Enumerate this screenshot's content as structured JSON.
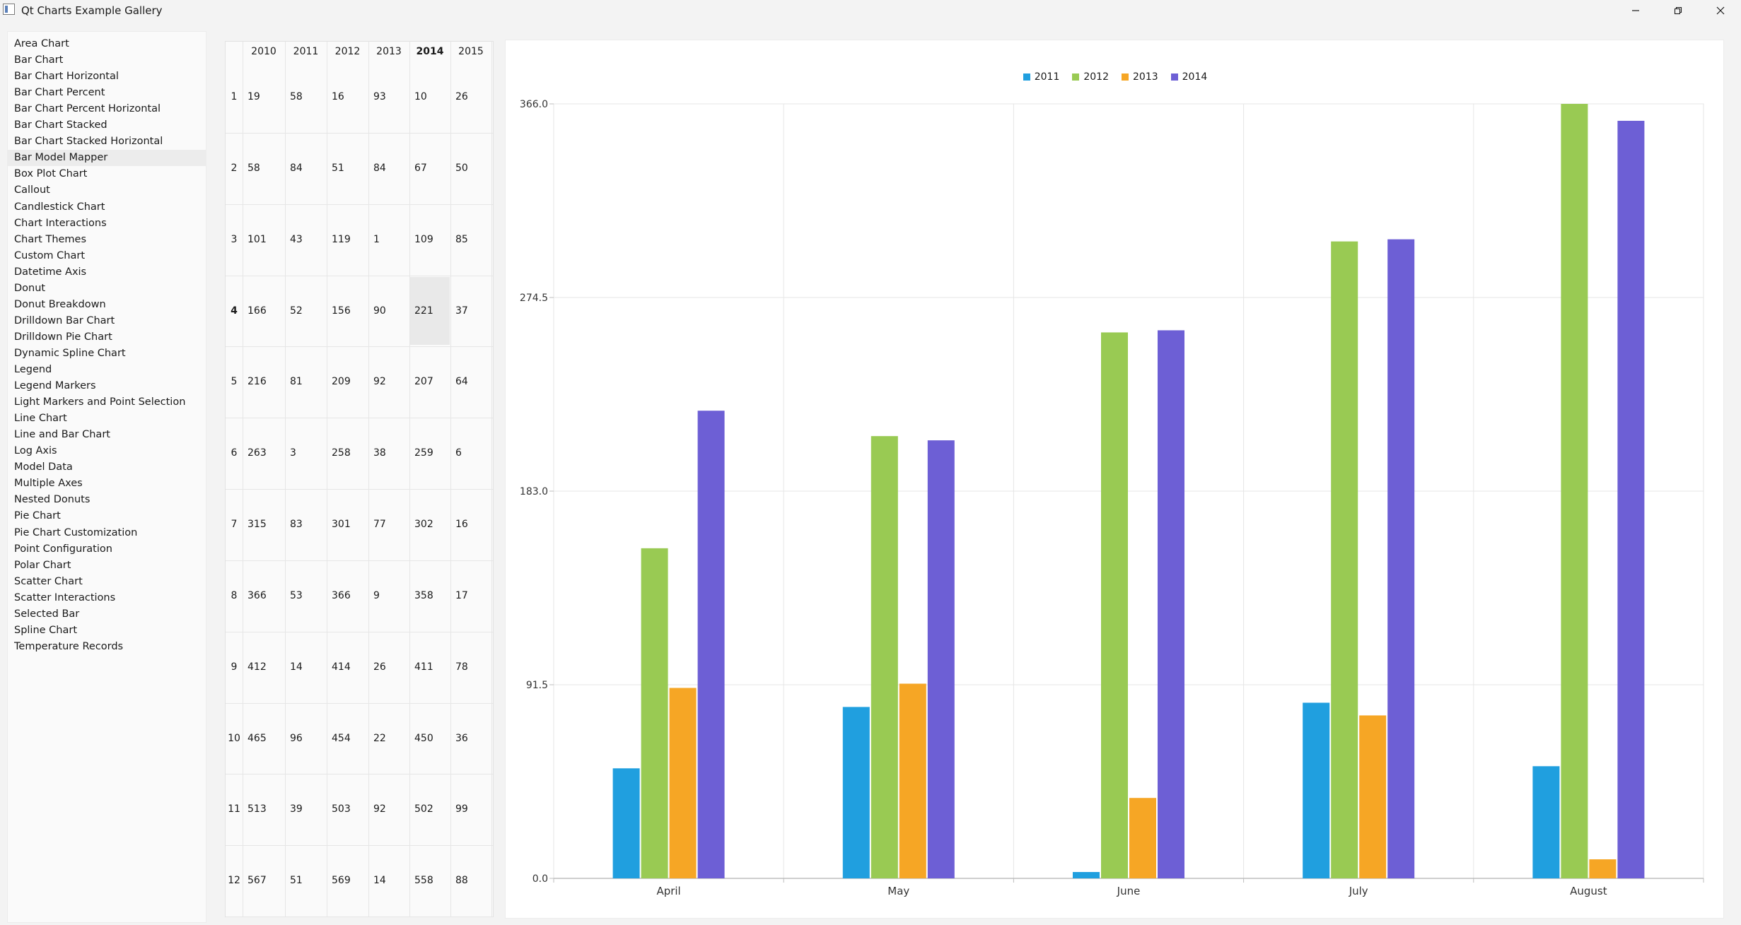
{
  "window": {
    "title": "Qt Charts Example Gallery",
    "icons": {
      "app": "app-icon",
      "minimize": "minimize-icon",
      "maximize": "restore-icon",
      "close": "close-icon"
    }
  },
  "sidebar": {
    "selected_index": 7,
    "items": [
      "Area Chart",
      "Bar Chart",
      "Bar Chart Horizontal",
      "Bar Chart Percent",
      "Bar Chart Percent Horizontal",
      "Bar Chart Stacked",
      "Bar Chart Stacked Horizontal",
      "Bar Model Mapper",
      "Box Plot Chart",
      "Callout",
      "Candlestick Chart",
      "Chart Interactions",
      "Chart Themes",
      "Custom Chart",
      "Datetime Axis",
      "Donut",
      "Donut Breakdown",
      "Drilldown Bar Chart",
      "Drilldown Pie Chart",
      "Dynamic Spline Chart",
      "Legend",
      "Legend Markers",
      "Light Markers and Point Selection",
      "Line Chart",
      "Line and Bar Chart",
      "Log Axis",
      "Model Data",
      "Multiple Axes",
      "Nested Donuts",
      "Pie Chart",
      "Pie Chart Customization",
      "Point Configuration",
      "Polar Chart",
      "Scatter Chart",
      "Scatter Interactions",
      "Selected Bar",
      "Spline Chart",
      "Temperature Records"
    ]
  },
  "table": {
    "columns": [
      "2010",
      "2011",
      "2012",
      "2013",
      "2014",
      "2015"
    ],
    "bold_column": 4,
    "bold_row": 3,
    "highlighted_cell": {
      "row": 3,
      "col": 4
    },
    "rows": [
      {
        "label": "1",
        "cells": [
          "19",
          "58",
          "16",
          "93",
          "10",
          "26"
        ]
      },
      {
        "label": "2",
        "cells": [
          "58",
          "84",
          "51",
          "84",
          "67",
          "50"
        ]
      },
      {
        "label": "3",
        "cells": [
          "101",
          "43",
          "119",
          "1",
          "109",
          "85"
        ]
      },
      {
        "label": "4",
        "cells": [
          "166",
          "52",
          "156",
          "90",
          "221",
          "37"
        ]
      },
      {
        "label": "5",
        "cells": [
          "216",
          "81",
          "209",
          "92",
          "207",
          "64"
        ]
      },
      {
        "label": "6",
        "cells": [
          "263",
          "3",
          "258",
          "38",
          "259",
          "6"
        ]
      },
      {
        "label": "7",
        "cells": [
          "315",
          "83",
          "301",
          "77",
          "302",
          "16"
        ]
      },
      {
        "label": "8",
        "cells": [
          "366",
          "53",
          "366",
          "9",
          "358",
          "17"
        ]
      },
      {
        "label": "9",
        "cells": [
          "412",
          "14",
          "414",
          "26",
          "411",
          "78"
        ]
      },
      {
        "label": "10",
        "cells": [
          "465",
          "96",
          "454",
          "22",
          "450",
          "36"
        ]
      },
      {
        "label": "11",
        "cells": [
          "513",
          "39",
          "503",
          "92",
          "502",
          "99"
        ]
      },
      {
        "label": "12",
        "cells": [
          "567",
          "51",
          "569",
          "14",
          "558",
          "88"
        ]
      }
    ]
  },
  "chart_data": {
    "type": "bar",
    "title": "",
    "xlabel": "",
    "ylabel": "",
    "categories": [
      "April",
      "May",
      "June",
      "July",
      "August"
    ],
    "ylim": [
      0,
      366
    ],
    "y_ticks": [
      "366.0",
      "274.5",
      "183.0",
      "91.5",
      "0.0"
    ],
    "y_tick_values": [
      366,
      274.5,
      183,
      91.5,
      0
    ],
    "grid": true,
    "legend_position": "top-center",
    "series": [
      {
        "name": "2011",
        "color": "#209fdf",
        "values": [
          52,
          81,
          3,
          83,
          53
        ]
      },
      {
        "name": "2012",
        "color": "#99ca53",
        "values": [
          156,
          209,
          258,
          301,
          366
        ]
      },
      {
        "name": "2013",
        "color": "#f6a625",
        "values": [
          90,
          92,
          38,
          77,
          9
        ]
      },
      {
        "name": "2014",
        "color": "#6d5fd5",
        "values": [
          221,
          207,
          259,
          302,
          358
        ]
      }
    ]
  }
}
